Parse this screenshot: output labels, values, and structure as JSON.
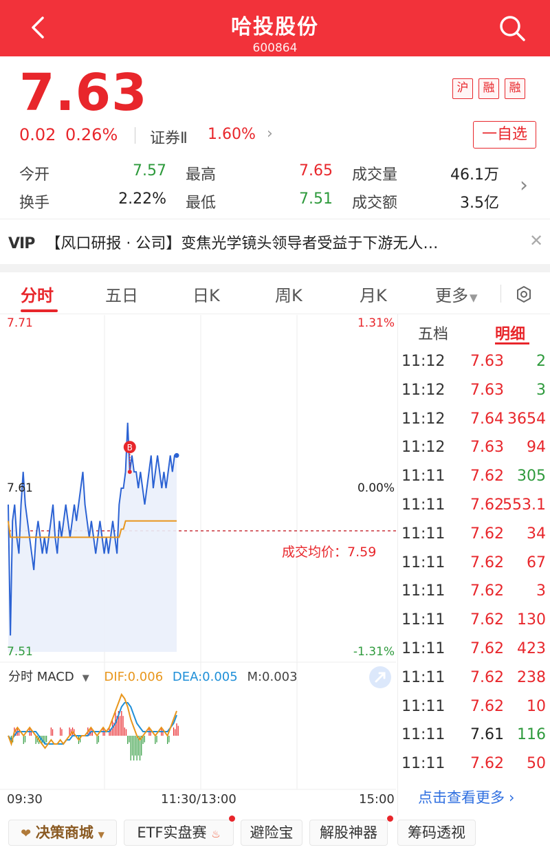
{
  "header": {
    "title": "哈投股份",
    "code": "600864"
  },
  "quote": {
    "price": "7.63",
    "change": "0.02",
    "change_pct": "0.26%",
    "sector_name": "证券Ⅱ",
    "sector_pct": "1.60%",
    "tags": [
      "沪",
      "融",
      "融"
    ],
    "watch_label": "一自选"
  },
  "stats": [
    {
      "label": "今开",
      "value": "7.57",
      "color": "green"
    },
    {
      "label": "最高",
      "value": "7.65",
      "color": "red"
    },
    {
      "label": "成交量",
      "value": "46.1万",
      "color": "dark"
    },
    {
      "label": "换手",
      "value": "2.22%",
      "color": "dark"
    },
    {
      "label": "最低",
      "value": "7.51",
      "color": "green"
    },
    {
      "label": "成交额",
      "value": "3.5亿",
      "color": "dark"
    }
  ],
  "news": {
    "vip": "VIP",
    "text": "【风口研报 · 公司】变焦光学镜头领导者受益于下游无人…"
  },
  "tabs": [
    "分时",
    "五日",
    "日K",
    "周K",
    "月K",
    "更多"
  ],
  "chart_data": {
    "type": "line",
    "title": "",
    "y_ticks": {
      "top": "7.71",
      "mid": "7.61",
      "bottom": "7.51"
    },
    "pct_ticks": {
      "top": "1.31%",
      "mid": "0.00%",
      "bottom": "-1.31%"
    },
    "ylim": [
      7.51,
      7.71
    ],
    "avg_label": "成交均价：7.59",
    "buy_marker": "B",
    "x_labels": [
      "09:30",
      "11:30/13:00",
      "15:00"
    ],
    "series": [
      {
        "values": [
          7.6,
          7.52,
          7.59,
          7.6,
          7.58,
          7.57,
          7.6,
          7.62,
          7.6,
          7.59,
          7.58,
          7.57,
          7.56,
          7.58,
          7.59,
          7.58,
          7.57,
          7.58,
          7.57,
          7.58,
          7.59,
          7.6,
          7.58,
          7.57,
          7.59,
          7.58,
          7.59,
          7.6,
          7.59,
          7.58,
          7.59,
          7.6,
          7.59,
          7.6,
          7.61,
          7.62,
          7.6,
          7.59,
          7.58,
          7.59,
          7.58,
          7.57,
          7.58,
          7.59,
          7.58,
          7.57,
          7.58,
          7.57,
          7.58,
          7.59,
          7.58,
          7.57,
          7.6,
          7.61,
          7.61,
          7.62,
          7.65,
          7.62,
          7.63,
          7.62,
          7.62,
          7.61,
          7.62,
          7.61,
          7.6,
          7.61,
          7.62,
          7.63,
          7.61,
          7.62,
          7.63,
          7.62,
          7.61,
          7.62,
          7.61,
          7.62,
          7.63,
          7.62,
          7.63,
          7.63
        ]
      },
      {
        "values": [
          7.59,
          7.58,
          7.58,
          7.58,
          7.58,
          7.58,
          7.58,
          7.58,
          7.58,
          7.58,
          7.58,
          7.58,
          7.58,
          7.58,
          7.58,
          7.58,
          7.58,
          7.58,
          7.58,
          7.58,
          7.58,
          7.58,
          7.58,
          7.58,
          7.58,
          7.58,
          7.58,
          7.58,
          7.58,
          7.58,
          7.58,
          7.58,
          7.58,
          7.58,
          7.58,
          7.58,
          7.58,
          7.58,
          7.58,
          7.58,
          7.58,
          7.58,
          7.58,
          7.58,
          7.58,
          7.58,
          7.58,
          7.58,
          7.58,
          7.58,
          7.58,
          7.58,
          7.58,
          7.585,
          7.585,
          7.59,
          7.59,
          7.59,
          7.59,
          7.59,
          7.59,
          7.59,
          7.59,
          7.59,
          7.59,
          7.59,
          7.59,
          7.59,
          7.59,
          7.59,
          7.59,
          7.59,
          7.59,
          7.59,
          7.59,
          7.59,
          7.59,
          7.59,
          7.59,
          7.59
        ]
      }
    ],
    "macd": {
      "indicator_label": "分时 MACD",
      "dif_label": "DIF:0.006",
      "dea_label": "DEA:0.005",
      "m_label": "M:0.003",
      "dif": [
        0,
        -0.002,
        0.001,
        0.002,
        0.001,
        0,
        0.001,
        0.002,
        0.001,
        0,
        -0.001,
        -0.002,
        -0.003,
        -0.002,
        -0.001,
        -0.002,
        -0.002,
        -0.001,
        -0.002,
        -0.001,
        0,
        0.001,
        0,
        -0.001,
        0,
        0,
        0.001,
        0.002,
        0.001,
        0,
        0.001,
        0.002,
        0.001,
        0.002,
        0.004,
        0.006,
        0.008,
        0.01,
        0.009,
        0.007,
        0.004,
        0.002,
        0,
        -0.001,
        0,
        0.001,
        0.002,
        0.001,
        0,
        0.001,
        0.002,
        0.001,
        0,
        0.002,
        0.004,
        0.006
      ],
      "dea": [
        0,
        -0.001,
        0,
        0.001,
        0.001,
        0.001,
        0.001,
        0.001,
        0.001,
        0.001,
        0,
        -0.001,
        -0.002,
        -0.002,
        -0.002,
        -0.002,
        -0.002,
        -0.002,
        -0.002,
        -0.001,
        -0.001,
        0,
        0,
        0,
        0,
        0,
        0,
        0.001,
        0.001,
        0.001,
        0.001,
        0.001,
        0.001,
        0.001,
        0.002,
        0.003,
        0.005,
        0.007,
        0.008,
        0.008,
        0.007,
        0.005,
        0.003,
        0.002,
        0.001,
        0.001,
        0.001,
        0.001,
        0.001,
        0.001,
        0.001,
        0.001,
        0.001,
        0.002,
        0.003,
        0.005
      ],
      "m": [
        0,
        -0.002,
        0.002,
        0.002,
        0,
        -0.002,
        0,
        0.002,
        0,
        -0.002,
        -0.002,
        -0.002,
        -0.002,
        0,
        0.002,
        0,
        0,
        0.002,
        0,
        0,
        0.002,
        0.002,
        0,
        -0.002,
        0,
        0,
        0.002,
        0.002,
        0,
        -0.002,
        0,
        0.002,
        0,
        0.002,
        0.004,
        0.006,
        0.006,
        0.006,
        0.002,
        -0.002,
        -0.006,
        -0.006,
        -0.006,
        -0.006,
        -0.002,
        0,
        0.002,
        0,
        -0.002,
        0,
        0.002,
        0,
        -0.002,
        0,
        0.002,
        0.003
      ]
    }
  },
  "panel": {
    "tabs": [
      "五档",
      "明细"
    ],
    "trades": [
      {
        "time": "11:12",
        "price": "7.63",
        "vol": "2",
        "pc": "red",
        "vc": "green"
      },
      {
        "time": "11:12",
        "price": "7.63",
        "vol": "3",
        "pc": "red",
        "vc": "green"
      },
      {
        "time": "11:12",
        "price": "7.64",
        "vol": "3654",
        "pc": "red",
        "vc": "red"
      },
      {
        "time": "11:12",
        "price": "7.63",
        "vol": "94",
        "pc": "red",
        "vc": "red"
      },
      {
        "time": "11:11",
        "price": "7.62",
        "vol": "305",
        "pc": "red",
        "vc": "green"
      },
      {
        "time": "11:11",
        "price": "7.62",
        "vol": "553.1",
        "pc": "red",
        "vc": "red"
      },
      {
        "time": "11:11",
        "price": "7.62",
        "vol": "34",
        "pc": "red",
        "vc": "red"
      },
      {
        "time": "11:11",
        "price": "7.62",
        "vol": "67",
        "pc": "red",
        "vc": "red"
      },
      {
        "time": "11:11",
        "price": "7.62",
        "vol": "3",
        "pc": "red",
        "vc": "red"
      },
      {
        "time": "11:11",
        "price": "7.62",
        "vol": "130",
        "pc": "red",
        "vc": "red"
      },
      {
        "time": "11:11",
        "price": "7.62",
        "vol": "423",
        "pc": "red",
        "vc": "red"
      },
      {
        "time": "11:11",
        "price": "7.62",
        "vol": "238",
        "pc": "red",
        "vc": "red"
      },
      {
        "time": "11:11",
        "price": "7.62",
        "vol": "10",
        "pc": "red",
        "vc": "red"
      },
      {
        "time": "11:11",
        "price": "7.61",
        "vol": "116",
        "pc": "dark",
        "vc": "green"
      },
      {
        "time": "11:11",
        "price": "7.62",
        "vol": "50",
        "pc": "red",
        "vc": "red"
      }
    ],
    "more_label": "点击查看更多"
  },
  "toolbar": [
    {
      "label": "决策商城",
      "dot": false
    },
    {
      "label": "ETF实盘赛",
      "dot": true
    },
    {
      "label": "避险宝",
      "dot": false
    },
    {
      "label": "解股神器",
      "dot": true
    },
    {
      "label": "筹码透视",
      "dot": false
    }
  ],
  "colors": {
    "brand": "#f2323a",
    "up": "#e8262b",
    "down": "#2e9a3c",
    "line": "#2b62d3",
    "avg": "#e8961c",
    "dea": "#1f8fd8"
  }
}
